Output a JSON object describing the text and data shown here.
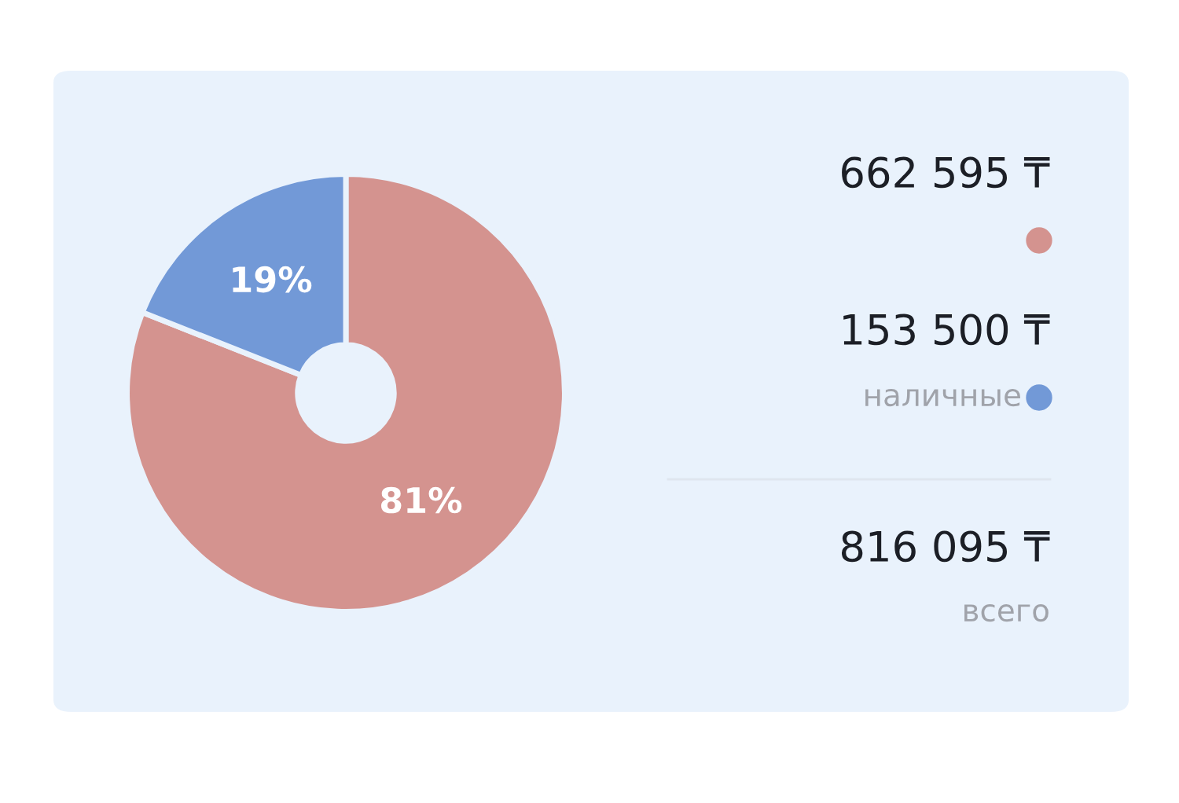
{
  "chart_data": {
    "type": "donut",
    "categories": [
      null,
      "наличные"
    ],
    "values": [
      81,
      19
    ],
    "colors": [
      "#d4938f",
      "#7299d7"
    ],
    "value_labels": [
      "81%",
      "19%"
    ],
    "legend": "right",
    "annotations": [
      "662 595 ₸",
      "153 500 ₸",
      "816 095 ₸",
      "всего"
    ]
  }
}
